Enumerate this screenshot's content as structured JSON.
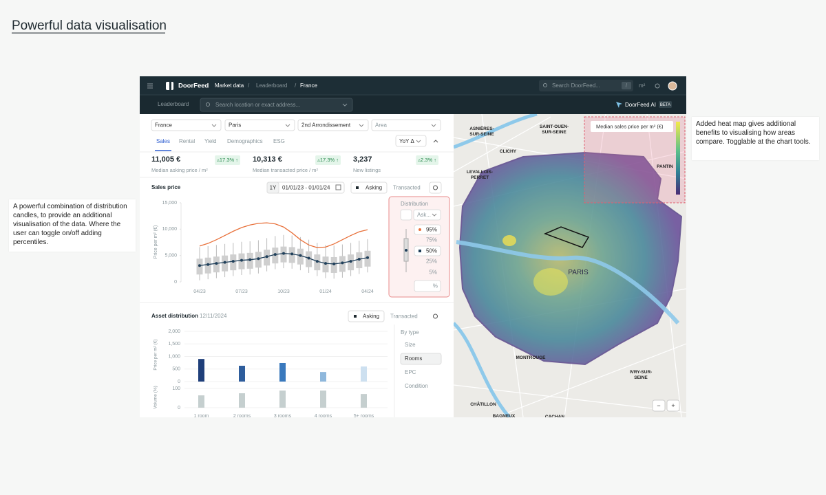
{
  "page_title": "Powerful data visualisation",
  "nav": {
    "brand": "DoorFeed",
    "breadcrumbs": [
      "Market data",
      "Leaderboard",
      "France"
    ],
    "separator": "/",
    "search": "Search DoorFeed...",
    "shortcut": "/",
    "unit": "m²"
  },
  "subbar": {
    "tab": "Leaderboard",
    "search": "Search location or exact address...",
    "ai": "DoorFeed AI",
    "badge": "BETA"
  },
  "filters": [
    "France",
    "Paris",
    "2nd Arrondissement",
    "Area"
  ],
  "tabs": [
    "Sales",
    "Rental",
    "Yield",
    "Demographics",
    "ESG"
  ],
  "compare": "YoY Δ",
  "kpis": [
    {
      "value": "11,005 €",
      "change": "▵17.3% ↑",
      "label": "Median asking price / m²"
    },
    {
      "value": "10,313 €",
      "change": "▵17.3% ↑",
      "label": "Median transacted price / m²"
    },
    {
      "value": "3,237",
      "change": "▵2.3% ↑",
      "label": "New listings"
    }
  ],
  "sales_chart": {
    "type": "box",
    "title": "Sales price",
    "period": "1Y",
    "range": "01/01/23 - 01/01/24",
    "toggle": [
      "Asking",
      "Transacted"
    ],
    "y_label": "Price per m² (€)",
    "categories": [
      "04/23",
      null,
      null,
      null,
      null,
      "07/23",
      null,
      null,
      null,
      null,
      "10/23",
      null,
      null,
      null,
      null,
      "01/24",
      null,
      null,
      null,
      null,
      "04/24"
    ],
    "ylim": [
      0,
      15000
    ],
    "yticks": [
      0,
      {
        "value": 5000,
        "label": "5,000"
      },
      {
        "value": 10000,
        "label": "10,000"
      },
      {
        "value": 15000,
        "label": "15,000"
      }
    ],
    "median": [
      3100,
      3300,
      3500,
      3700,
      3900,
      4100,
      4200,
      4400,
      4800,
      5200,
      5400,
      5300,
      5000,
      4500,
      3900,
      3500,
      3400,
      3600,
      3900,
      4300,
      4600
    ],
    "q1": [
      1400,
      1600,
      1800,
      2000,
      2200,
      2400,
      2500,
      2700,
      3100,
      3500,
      3700,
      3600,
      3300,
      2800,
      2200,
      1800,
      1700,
      1900,
      2200,
      2600,
      2900
    ],
    "q3": [
      4400,
      4600,
      4800,
      5000,
      5200,
      5400,
      5500,
      5700,
      6100,
      6500,
      6700,
      6600,
      6300,
      5800,
      5200,
      4800,
      4700,
      4900,
      5200,
      5600,
      5900
    ],
    "low": [
      300,
      500,
      700,
      900,
      1100,
      1300,
      1400,
      1600,
      2000,
      2400,
      2600,
      2500,
      2200,
      1700,
      1100,
      700,
      600,
      800,
      1100,
      1500,
      1800
    ],
    "high": [
      6600,
      6800,
      7000,
      7200,
      7400,
      7600,
      7700,
      7900,
      8300,
      8700,
      8900,
      8800,
      8500,
      8000,
      7400,
      7000,
      6900,
      7100,
      7400,
      7800,
      8100
    ],
    "upper": [
      6800,
      7300,
      8000,
      8800,
      9600,
      10300,
      10800,
      11100,
      11200,
      11000,
      10400,
      9300,
      8000,
      7000,
      6500,
      6600,
      7200,
      8000,
      8800,
      9500,
      9900
    ],
    "upper_color": "#e8703a",
    "median_color": "#1f3f5a",
    "box_color": "#cfcfcf"
  },
  "distribution": {
    "title": "Distribution",
    "select": "Ask...",
    "percentiles": [
      "95%",
      "75%",
      "50%",
      "25%",
      "5%"
    ],
    "custom": "%"
  },
  "asset_chart": {
    "type": "bar",
    "title": "Asset distribution",
    "date": "12/11/2024",
    "toggle": [
      "Asking",
      "Transacted"
    ],
    "y_label": "Price per m² (€)",
    "categories": [
      "1 room",
      "2 rooms",
      "3 rooms",
      "4 rooms",
      "5+ rooms"
    ],
    "values": [
      900,
      630,
      740,
      380,
      600
    ],
    "colors": [
      "#1f3f7a",
      "#2e5d9c",
      "#3a79bd",
      "#8fb8dc",
      "#cde0f0"
    ],
    "ylim": [
      0,
      2000
    ],
    "yticks": [
      0,
      500,
      {
        "value": 1000,
        "label": "1,000"
      },
      {
        "value": 1500,
        "label": "1,500"
      },
      {
        "value": 2000,
        "label": "2,000"
      }
    ],
    "volume": {
      "y_label": "Volume (%)",
      "values": [
        64,
        75,
        89,
        89,
        71
      ],
      "color": "#c5cfcf",
      "ylim": [
        0,
        100
      ],
      "yticks": [
        0,
        100
      ]
    }
  },
  "by_type": {
    "title": "By type",
    "options": [
      "Size",
      "Rooms",
      "EPC",
      "Condition"
    ]
  },
  "map": {
    "legend": "Median sales price per m² (€)",
    "labels": [
      [
        "ASNIÈRES-",
        "SUR-SEINE"
      ],
      [
        "SAINT-OUEN-",
        "SUR-SEINE"
      ],
      [
        "CLICHY"
      ],
      [
        "LEVALLOIS-",
        "PERRET"
      ],
      [
        "PANTIN"
      ],
      [
        "PARIS"
      ],
      [
        "MONTROUGE"
      ],
      [
        "IVRY-SUR-",
        "SEINE"
      ],
      [
        "CHÂTILLON"
      ],
      [
        "BAGNEUX"
      ],
      [
        "CACHAN"
      ]
    ],
    "zoom": [
      "−",
      "+"
    ]
  },
  "annotations": [
    "A powerful combination of distribution candles, to provide an additional visualisation of the data. Where the user can toggle on/off adding percentiles.",
    "Added heat map gives additional benefits to visualising how areas compare. Togglable at the chart tools."
  ]
}
